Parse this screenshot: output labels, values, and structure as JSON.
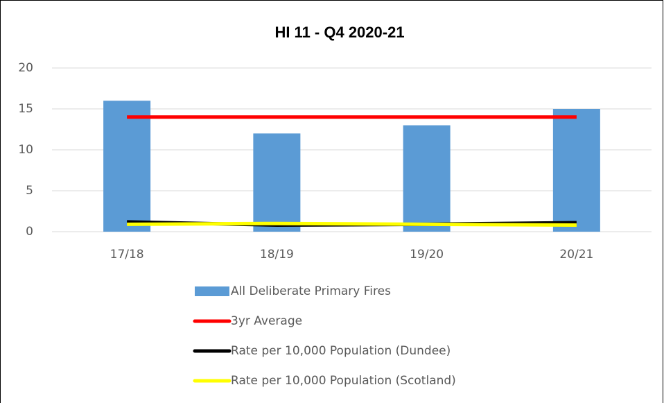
{
  "chart_data": {
    "type": "bar",
    "title": "HI 11 - Q4 2020-21",
    "categories": [
      "17/18",
      "18/19",
      "19/20",
      "20/21"
    ],
    "series": [
      {
        "name": "All Deliberate Primary Fires",
        "type": "bar",
        "color": "#5b9bd5",
        "values": [
          16,
          12,
          13,
          15
        ]
      },
      {
        "name": "3yr Average",
        "type": "line",
        "color": "#ff0000",
        "values": [
          14,
          14,
          14,
          14
        ]
      },
      {
        "name": "Rate per 10,000 Population (Dundee)",
        "type": "line",
        "color": "#000000",
        "values": [
          1.2,
          0.8,
          0.9,
          1.1
        ]
      },
      {
        "name": "Rate per 10,000 Population (Scotland)",
        "type": "line",
        "color": "#ffff00",
        "values": [
          0.9,
          1.0,
          0.9,
          0.8
        ]
      }
    ],
    "ylim": [
      0,
      20
    ],
    "yticks": [
      0,
      5,
      10,
      15,
      20
    ],
    "grid": true,
    "legend": "bottom"
  }
}
